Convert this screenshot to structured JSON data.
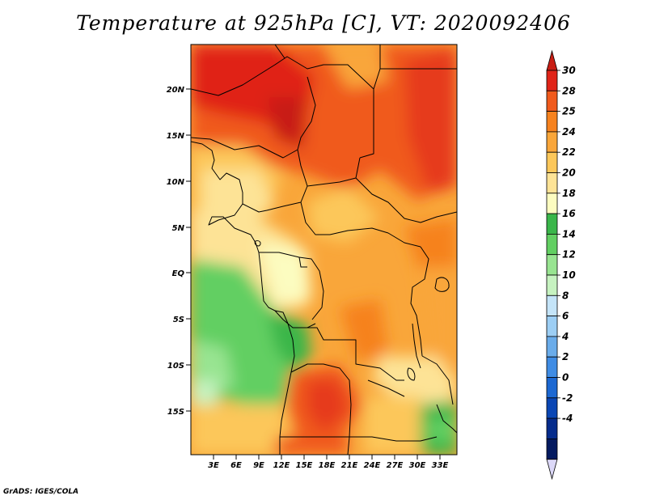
{
  "title": "Temperature at 925hPa [C], VT: 2020092406",
  "credit": "GrADS: IGES/COLA",
  "map": {
    "lat_labels": [
      "20N",
      "15N",
      "10N",
      "5N",
      "EQ",
      "5S",
      "10S",
      "15S"
    ],
    "lon_labels": [
      "3E",
      "6E",
      "9E",
      "12E",
      "15E",
      "18E",
      "21E",
      "24E",
      "27E",
      "30E",
      "33E"
    ]
  },
  "colorbar": {
    "labels": [
      "30",
      "28",
      "25",
      "24",
      "22",
      "20",
      "18",
      "16",
      "14",
      "12",
      "10",
      "8",
      "6",
      "4",
      "2",
      "0",
      "-2",
      "-4"
    ],
    "colors": [
      "#e02418",
      "#f05a1c",
      "#f6821e",
      "#f9a63a",
      "#fcc75a",
      "#fde396",
      "#fcfcc0",
      "#3ab64a",
      "#62cf62",
      "#98e491",
      "#c6f2c0",
      "#c4e4f8",
      "#9ccef4",
      "#6aacea",
      "#3f8ce4",
      "#1c68d2",
      "#0a46b4",
      "#062c8c",
      "#041a60"
    ],
    "top_arrow_color": "#c81e14",
    "bottom_arrow_color": "#dcd8f8"
  }
}
